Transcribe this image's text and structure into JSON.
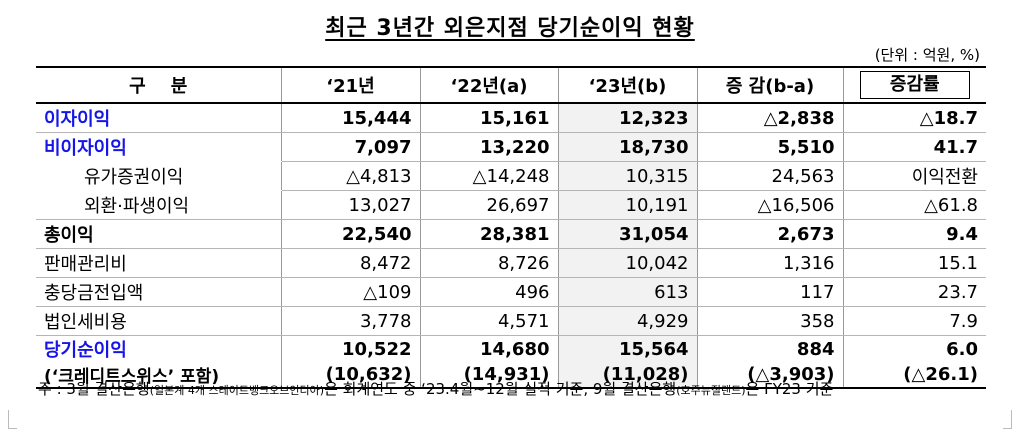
{
  "title": "최근 3년간 외은지점 당기순이익 현황",
  "unit": "(단위 : 억원, %)",
  "columns": [
    "구    분",
    "‘21년",
    "‘22년(a)",
    "‘23년(b)",
    "증 감(b-a)",
    "증감률"
  ],
  "rows": [
    {
      "label": "이자이익",
      "v21": "15,444",
      "v22": "15,161",
      "v23": "12,323",
      "diff": "△2,838",
      "rate": "△18.7"
    },
    {
      "label": "비이자이익",
      "v21": "7,097",
      "v22": "13,220",
      "v23": "18,730",
      "diff": "5,510",
      "rate": "41.7"
    },
    {
      "label": "유가증권이익",
      "v21": "△4,813",
      "v22": "△14,248",
      "v23": "10,315",
      "diff": "24,563",
      "rate": "이익전환"
    },
    {
      "label": "외환·파생이익",
      "v21": "13,027",
      "v22": "26,697",
      "v23": "10,191",
      "diff": "△16,506",
      "rate": "△61.8"
    },
    {
      "label": "총이익",
      "v21": "22,540",
      "v22": "28,381",
      "v23": "31,054",
      "diff": "2,673",
      "rate": "9.4"
    },
    {
      "label": "판매관리비",
      "v21": "8,472",
      "v22": "8,726",
      "v23": "10,042",
      "diff": "1,316",
      "rate": "15.1"
    },
    {
      "label": "충당금전입액",
      "v21": "△109",
      "v22": "496",
      "v23": "613",
      "diff": "117",
      "rate": "23.7"
    },
    {
      "label": "법인세비용",
      "v21": "3,778",
      "v22": "4,571",
      "v23": "4,929",
      "diff": "358",
      "rate": "7.9"
    },
    {
      "label": "당기순이익",
      "v21": "10,522",
      "v22": "14,680",
      "v23": "15,564",
      "diff": "884",
      "rate": "6.0"
    },
    {
      "label": "(‘크레디트스위스’ 포함)",
      "v21": "(10,632)",
      "v22": "(14,931)",
      "v23": "(11,028)",
      "diff": "(△3,903)",
      "rate": "(△26.1)"
    }
  ],
  "note": {
    "prefix": "주 : 3월 결산은행",
    "small1": "(일본계 4개  스테이트뱅크오브인디아)",
    "mid": "은 회계연도 중 ‘23.4월~12월 실적 기준, 9월 결산은행",
    "small2": "(호주뉴질랜드)",
    "suffix": "은 FY23 기준"
  }
}
